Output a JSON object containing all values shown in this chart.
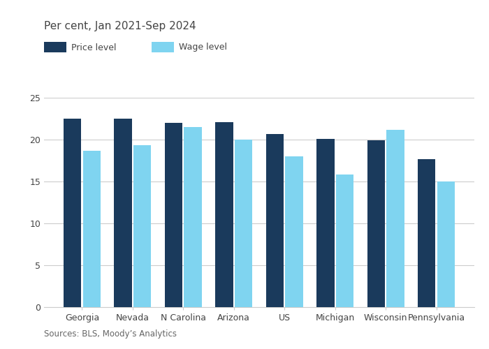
{
  "categories": [
    "Georgia",
    "Nevada",
    "N Carolina",
    "Arizona",
    "US",
    "Michigan",
    "Wisconsin",
    "Pennsylvania"
  ],
  "price_level": [
    22.5,
    22.5,
    22.0,
    22.1,
    20.7,
    20.1,
    19.9,
    17.7
  ],
  "wage_level": [
    18.7,
    19.3,
    21.5,
    20.0,
    18.0,
    15.8,
    21.2,
    15.0
  ],
  "price_color": "#1a3a5c",
  "wage_color": "#7fd4f0",
  "title": "Per cent, Jan 2021-Sep 2024",
  "legend_price": "Price level",
  "legend_wage": "Wage level",
  "source": "Sources: BLS, Moody’s Analytics",
  "ylim": [
    0,
    25
  ],
  "yticks": [
    0,
    5,
    10,
    15,
    20,
    25
  ],
  "background_color": "#ffffff",
  "title_fontsize": 11,
  "legend_fontsize": 9,
  "tick_fontsize": 9,
  "source_fontsize": 8.5,
  "bar_width": 0.35,
  "bar_gap": 0.03
}
